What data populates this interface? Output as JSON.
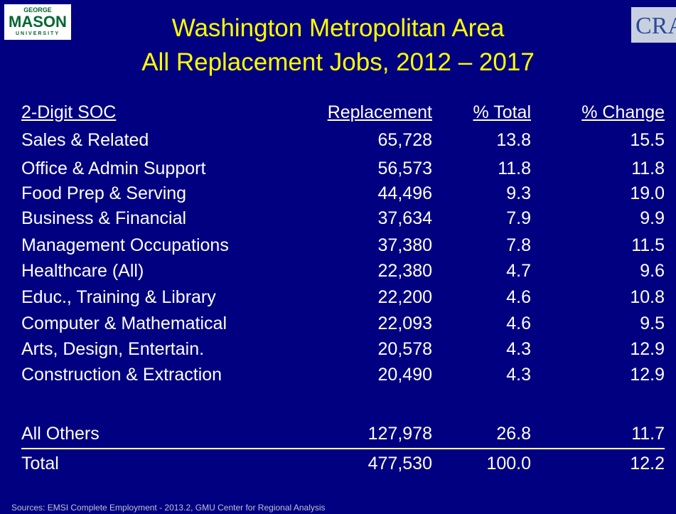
{
  "header": {
    "title_lines": [
      "Washington Metropolitan Area",
      "All Replacement Jobs, 2012 – 2017"
    ],
    "logo_left": [
      "GEORGE",
      "MASON",
      "UNIVERSITY"
    ],
    "logo_right": "CRA"
  },
  "table": {
    "columns": [
      "2-Digit SOC",
      "Replacement",
      "% Total",
      "% Change"
    ],
    "rows": [
      [
        "Sales & Related",
        "65,728",
        "13.8",
        "15.5"
      ],
      [
        "Office & Admin Support",
        "56,573",
        "11.8",
        "11.8"
      ],
      [
        "Food Prep & Serving",
        "44,496",
        "9.3",
        "19.0"
      ],
      [
        "Business & Financial",
        "37,634",
        "7.9",
        "9.9"
      ],
      [
        "Management Occupations",
        "37,380",
        "7.8",
        "11.5"
      ],
      [
        "Healthcare (All)",
        "22,380",
        "4.7",
        "9.6"
      ],
      [
        "Educ., Training & Library",
        "22,200",
        "4.6",
        "10.8"
      ],
      [
        "Computer & Mathematical",
        "22,093",
        "4.6",
        "9.5"
      ],
      [
        "Arts, Design, Entertain.",
        "20,578",
        "4.3",
        "12.9"
      ],
      [
        "Construction & Extraction",
        "20,490",
        "4.3",
        "12.9"
      ],
      [
        "All Others",
        "127,978",
        "26.8",
        "11.7"
      ],
      [
        "Total",
        "477,530",
        "100.0",
        "12.2"
      ]
    ]
  },
  "footer": {
    "sources": "Sources: EMSI Complete Employment - 2013.2, GMU Center for Regional Analysis"
  }
}
